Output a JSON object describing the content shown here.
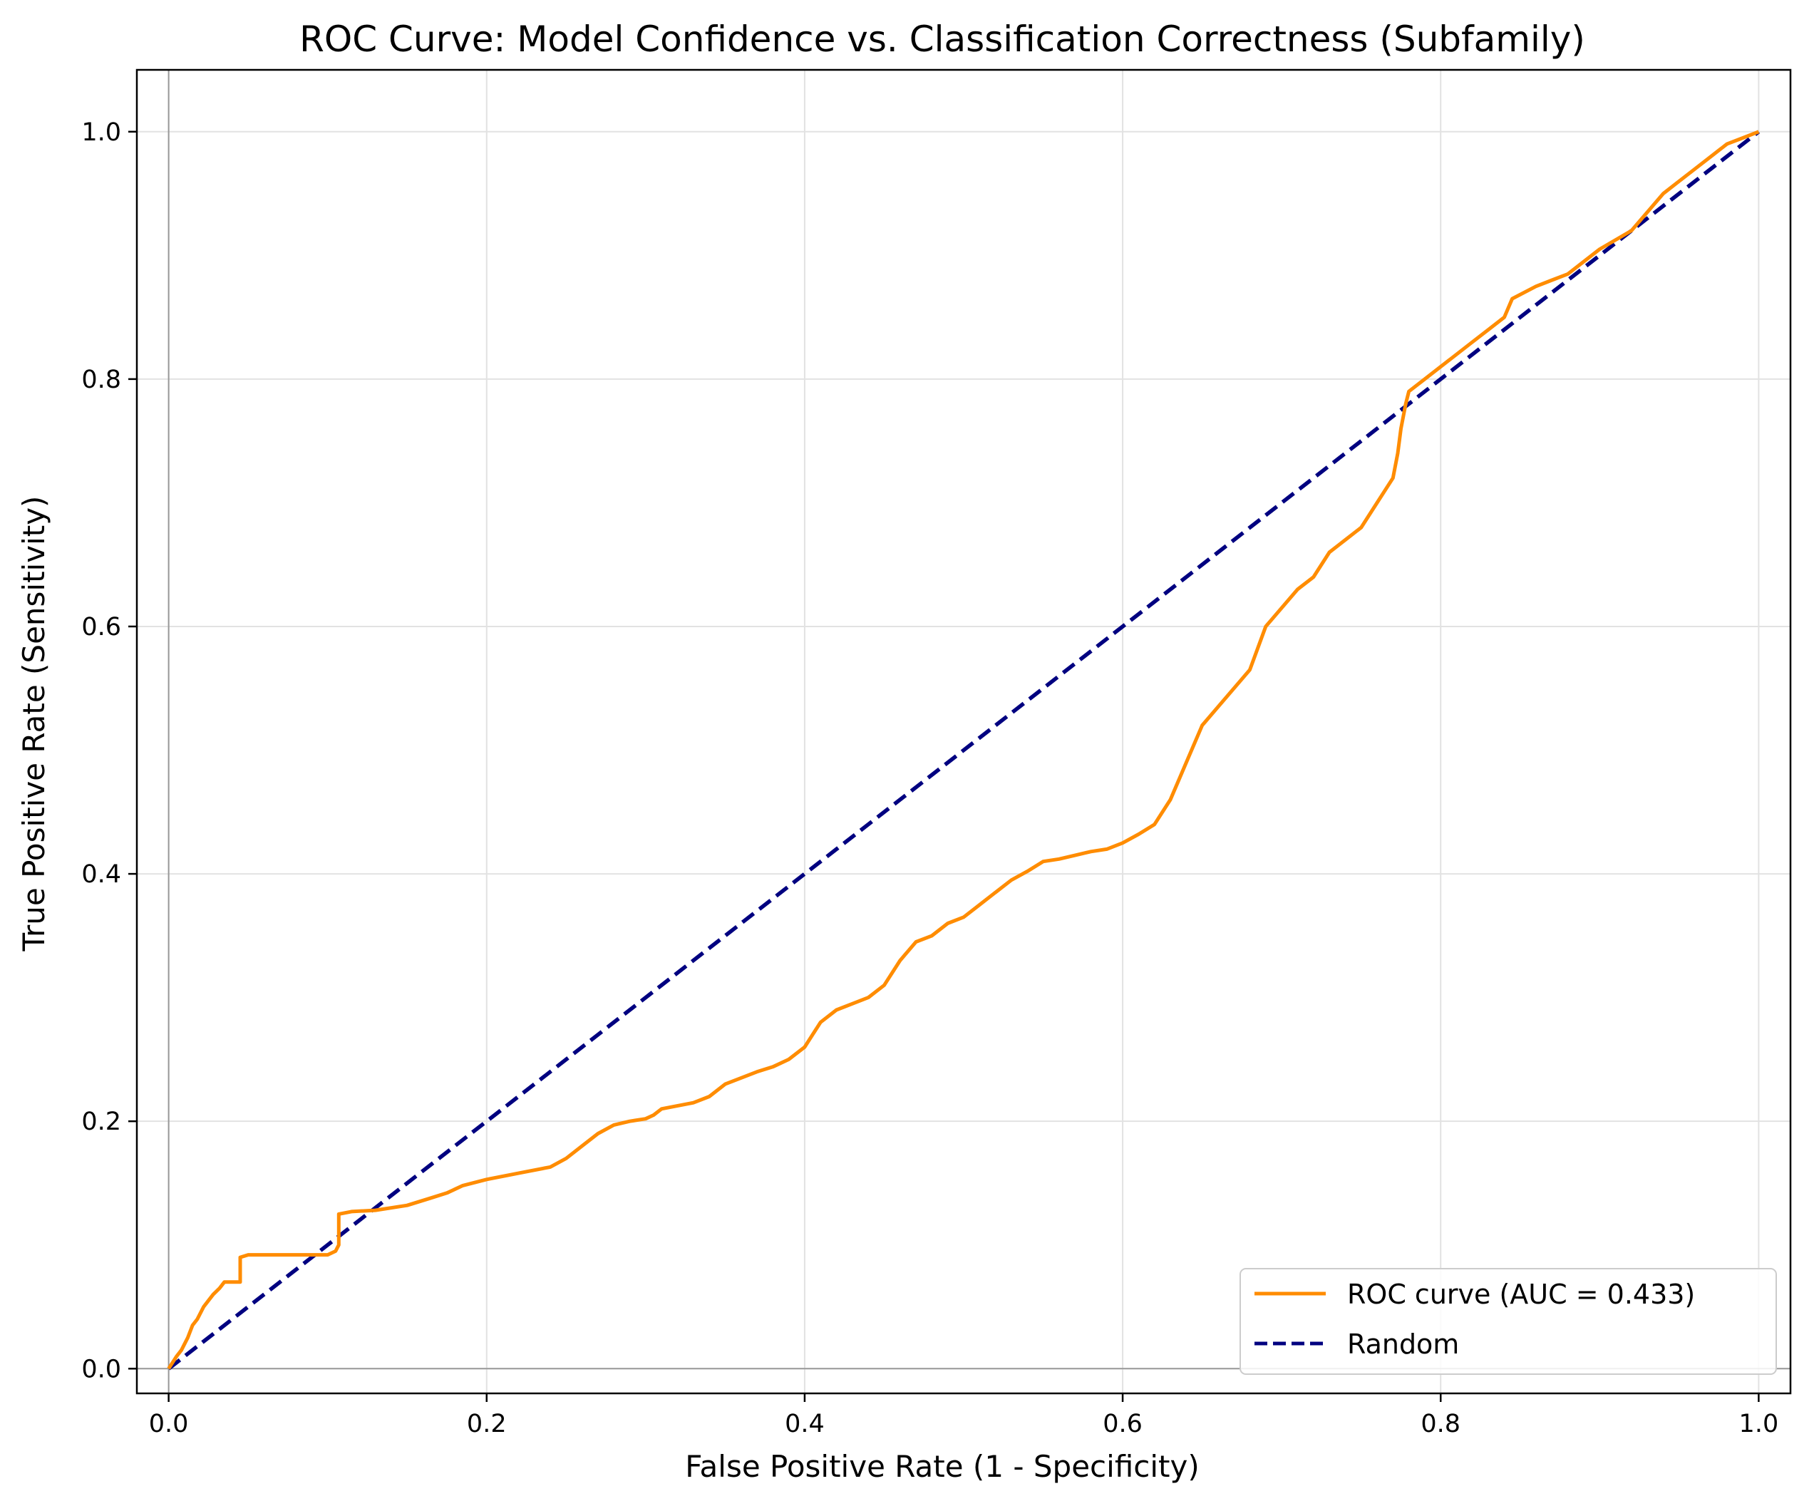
{
  "chart_data": {
    "type": "line",
    "title": "ROC Curve: Model Confidence vs. Classification Correctness (Subfamily)",
    "xlabel": "False Positive Rate (1 - Specificity)",
    "ylabel": "True Positive Rate (Sensitivity)",
    "xlim": [
      -0.02,
      1.02
    ],
    "ylim": [
      -0.02,
      1.05
    ],
    "xticks": [
      0.0,
      0.2,
      0.4,
      0.6,
      0.8,
      1.0
    ],
    "yticks": [
      0.0,
      0.2,
      0.4,
      0.6,
      0.8,
      1.0
    ],
    "xtick_labels": [
      "0.0",
      "0.2",
      "0.4",
      "0.6",
      "0.8",
      "1.0"
    ],
    "ytick_labels": [
      "0.0",
      "0.2",
      "0.4",
      "0.6",
      "0.8",
      "1.0"
    ],
    "grid": true,
    "legend_position": "lower-right",
    "series": [
      {
        "name": "ROC curve (AUC = 0.433)",
        "color": "#ff8c00",
        "style": "solid",
        "x": [
          0.0,
          0.005,
          0.008,
          0.012,
          0.015,
          0.018,
          0.022,
          0.025,
          0.028,
          0.032,
          0.035,
          0.045,
          0.045,
          0.05,
          0.06,
          0.08,
          0.1,
          0.105,
          0.107,
          0.107,
          0.115,
          0.13,
          0.15,
          0.165,
          0.175,
          0.185,
          0.2,
          0.22,
          0.24,
          0.25,
          0.26,
          0.27,
          0.28,
          0.29,
          0.3,
          0.305,
          0.31,
          0.33,
          0.34,
          0.35,
          0.36,
          0.37,
          0.38,
          0.39,
          0.4,
          0.41,
          0.42,
          0.43,
          0.44,
          0.45,
          0.46,
          0.47,
          0.48,
          0.49,
          0.5,
          0.51,
          0.52,
          0.53,
          0.54,
          0.55,
          0.56,
          0.57,
          0.58,
          0.59,
          0.6,
          0.61,
          0.62,
          0.63,
          0.64,
          0.65,
          0.66,
          0.67,
          0.68,
          0.69,
          0.7,
          0.71,
          0.72,
          0.73,
          0.74,
          0.75,
          0.76,
          0.77,
          0.773,
          0.775,
          0.778,
          0.78,
          0.79,
          0.8,
          0.81,
          0.82,
          0.83,
          0.84,
          0.845,
          0.86,
          0.87,
          0.88,
          0.89,
          0.9,
          0.92,
          0.93,
          0.94,
          0.95,
          0.96,
          0.97,
          0.98,
          0.99,
          1.0
        ],
        "y": [
          0.0,
          0.01,
          0.015,
          0.025,
          0.035,
          0.04,
          0.05,
          0.055,
          0.06,
          0.065,
          0.07,
          0.07,
          0.09,
          0.092,
          0.092,
          0.092,
          0.092,
          0.095,
          0.1,
          0.125,
          0.127,
          0.128,
          0.132,
          0.138,
          0.142,
          0.148,
          0.153,
          0.158,
          0.163,
          0.17,
          0.18,
          0.19,
          0.197,
          0.2,
          0.202,
          0.205,
          0.21,
          0.215,
          0.22,
          0.23,
          0.235,
          0.24,
          0.244,
          0.25,
          0.26,
          0.28,
          0.29,
          0.295,
          0.3,
          0.31,
          0.33,
          0.345,
          0.35,
          0.36,
          0.365,
          0.375,
          0.385,
          0.395,
          0.402,
          0.41,
          0.412,
          0.415,
          0.418,
          0.42,
          0.425,
          0.432,
          0.44,
          0.46,
          0.49,
          0.52,
          0.535,
          0.55,
          0.565,
          0.6,
          0.615,
          0.63,
          0.64,
          0.66,
          0.67,
          0.68,
          0.7,
          0.72,
          0.74,
          0.76,
          0.78,
          0.79,
          0.8,
          0.81,
          0.82,
          0.83,
          0.84,
          0.85,
          0.865,
          0.875,
          0.88,
          0.885,
          0.895,
          0.905,
          0.92,
          0.935,
          0.95,
          0.96,
          0.97,
          0.98,
          0.99,
          0.995,
          1.0
        ]
      },
      {
        "name": "Random",
        "color": "#000080",
        "style": "dashed",
        "x": [
          0.0,
          1.0
        ],
        "y": [
          0.0,
          1.0
        ]
      }
    ]
  }
}
